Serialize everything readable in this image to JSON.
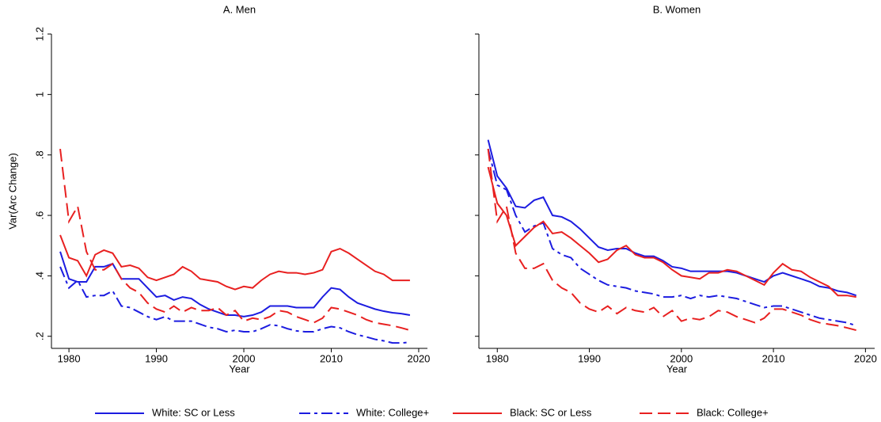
{
  "chart_data": [
    {
      "type": "line",
      "title": "A. Men",
      "x_label": "Year",
      "y_label": "Var(Arc Change)",
      "x": [
        1979,
        1980,
        1981,
        1982,
        1983,
        1984,
        1985,
        1986,
        1987,
        1988,
        1989,
        1990,
        1991,
        1992,
        1993,
        1994,
        1995,
        1996,
        1997,
        1998,
        1999,
        2000,
        2001,
        2002,
        2003,
        2004,
        2005,
        2006,
        2007,
        2008,
        2009,
        2010,
        2011,
        2012,
        2013,
        2014,
        2015,
        2016,
        2017,
        2018,
        2019
      ],
      "xlim": [
        1978,
        2021
      ],
      "xticks": [
        1980,
        1990,
        2000,
        2010,
        2020
      ],
      "ylim": [
        0.16,
        1.2
      ],
      "yticks": [
        {
          "value": 0.2,
          "label": ".2"
        },
        {
          "value": 0.4,
          "label": ".4"
        },
        {
          "value": 0.6,
          "label": ".6"
        },
        {
          "value": 0.8,
          "label": ".8"
        },
        1,
        1.2
      ],
      "series": [
        {
          "name": "White: SC or Less",
          "color": "#1c1ce0",
          "line_style": "solid",
          "values": [
            0.48,
            0.39,
            0.38,
            0.38,
            0.43,
            0.43,
            0.44,
            0.39,
            0.39,
            0.39,
            0.36,
            0.33,
            0.335,
            0.32,
            0.33,
            0.325,
            0.305,
            0.29,
            0.28,
            0.27,
            0.27,
            0.265,
            0.27,
            0.28,
            0.3,
            0.3,
            0.3,
            0.295,
            0.295,
            0.295,
            0.33,
            0.36,
            0.355,
            0.33,
            0.31,
            0.3,
            0.29,
            0.283,
            0.278,
            0.275,
            0.27
          ]
        },
        {
          "name": "White: College+",
          "color": "#1c1ce0",
          "line_style": "dashdot",
          "values": [
            0.43,
            0.36,
            0.385,
            0.33,
            0.335,
            0.335,
            0.35,
            0.3,
            0.295,
            0.28,
            0.265,
            0.255,
            0.265,
            0.25,
            0.25,
            0.25,
            0.24,
            0.23,
            0.225,
            0.215,
            0.22,
            0.215,
            0.215,
            0.225,
            0.238,
            0.235,
            0.225,
            0.218,
            0.215,
            0.215,
            0.225,
            0.232,
            0.228,
            0.215,
            0.205,
            0.198,
            0.19,
            0.185,
            0.178,
            0.178,
            0.18
          ]
        },
        {
          "name": "Black: SC or Less",
          "color": "#e82020",
          "line_style": "solid",
          "values": [
            0.535,
            0.46,
            0.45,
            0.4,
            0.47,
            0.485,
            0.475,
            0.43,
            0.435,
            0.425,
            0.395,
            0.385,
            0.395,
            0.405,
            0.43,
            0.415,
            0.39,
            0.385,
            0.38,
            0.365,
            0.355,
            0.365,
            0.36,
            0.385,
            0.405,
            0.415,
            0.41,
            0.41,
            0.405,
            0.41,
            0.42,
            0.48,
            0.49,
            0.475,
            0.455,
            0.435,
            0.415,
            0.405,
            0.385,
            0.385,
            0.385
          ]
        },
        {
          "name": "Black: College+",
          "color": "#e82020",
          "line_style": "dash",
          "values": [
            0.82,
            0.58,
            0.63,
            0.48,
            0.42,
            0.42,
            0.44,
            0.39,
            0.36,
            0.345,
            0.31,
            0.29,
            0.28,
            0.3,
            0.28,
            0.295,
            0.285,
            0.285,
            0.295,
            0.27,
            0.285,
            0.25,
            0.26,
            0.255,
            0.265,
            0.285,
            0.28,
            0.265,
            0.255,
            0.245,
            0.26,
            0.295,
            0.29,
            0.28,
            0.27,
            0.255,
            0.245,
            0.24,
            0.235,
            0.228,
            0.22
          ]
        }
      ]
    },
    {
      "type": "line",
      "title": "B. Women",
      "x_label": "Year",
      "x": [
        1979,
        1980,
        1981,
        1982,
        1983,
        1984,
        1985,
        1986,
        1987,
        1988,
        1989,
        1990,
        1991,
        1992,
        1993,
        1994,
        1995,
        1996,
        1997,
        1998,
        1999,
        2000,
        2001,
        2002,
        2003,
        2004,
        2005,
        2006,
        2007,
        2008,
        2009,
        2010,
        2011,
        2012,
        2013,
        2014,
        2015,
        2016,
        2017,
        2018,
        2019
      ],
      "xlim": [
        1978,
        2021
      ],
      "xticks": [
        1980,
        1990,
        2000,
        2010,
        2020
      ],
      "ylim": [
        0.16,
        1.2
      ],
      "yticks": [
        0.2,
        0.4,
        0.6,
        0.8,
        1,
        1.2
      ],
      "series": [
        {
          "color": "#1c1ce0",
          "line_style": "solid",
          "values": [
            0.85,
            0.73,
            0.69,
            0.63,
            0.625,
            0.65,
            0.66,
            0.6,
            0.595,
            0.58,
            0.555,
            0.525,
            0.495,
            0.485,
            0.49,
            0.49,
            0.475,
            0.465,
            0.465,
            0.45,
            0.43,
            0.425,
            0.415,
            0.415,
            0.415,
            0.415,
            0.415,
            0.41,
            0.4,
            0.39,
            0.38,
            0.4,
            0.41,
            0.4,
            0.39,
            0.38,
            0.365,
            0.36,
            0.35,
            0.345,
            0.335
          ]
        },
        {
          "color": "#1c1ce0",
          "line_style": "dashdot",
          "values": [
            0.82,
            0.7,
            0.685,
            0.6,
            0.545,
            0.565,
            0.575,
            0.49,
            0.47,
            0.46,
            0.425,
            0.405,
            0.385,
            0.37,
            0.365,
            0.36,
            0.35,
            0.345,
            0.34,
            0.33,
            0.33,
            0.335,
            0.325,
            0.335,
            0.33,
            0.335,
            0.33,
            0.325,
            0.315,
            0.305,
            0.295,
            0.3,
            0.3,
            0.29,
            0.28,
            0.27,
            0.26,
            0.255,
            0.25,
            0.245,
            0.235
          ]
        },
        {
          "color": "#e82020",
          "line_style": "solid",
          "values": [
            0.76,
            0.64,
            0.6,
            0.5,
            0.53,
            0.56,
            0.58,
            0.54,
            0.545,
            0.525,
            0.5,
            0.475,
            0.445,
            0.455,
            0.485,
            0.5,
            0.47,
            0.46,
            0.46,
            0.445,
            0.42,
            0.4,
            0.395,
            0.39,
            0.41,
            0.41,
            0.42,
            0.415,
            0.4,
            0.385,
            0.37,
            0.41,
            0.44,
            0.42,
            0.415,
            0.395,
            0.38,
            0.365,
            0.335,
            0.335,
            0.33
          ]
        },
        {
          "color": "#e82020",
          "line_style": "dash",
          "values": [
            0.82,
            0.58,
            0.63,
            0.475,
            0.425,
            0.425,
            0.44,
            0.385,
            0.36,
            0.345,
            0.31,
            0.29,
            0.28,
            0.3,
            0.275,
            0.295,
            0.285,
            0.28,
            0.295,
            0.265,
            0.285,
            0.25,
            0.26,
            0.255,
            0.265,
            0.285,
            0.28,
            0.265,
            0.255,
            0.245,
            0.26,
            0.29,
            0.29,
            0.28,
            0.27,
            0.255,
            0.245,
            0.24,
            0.235,
            0.228,
            0.22
          ]
        }
      ]
    }
  ]
}
